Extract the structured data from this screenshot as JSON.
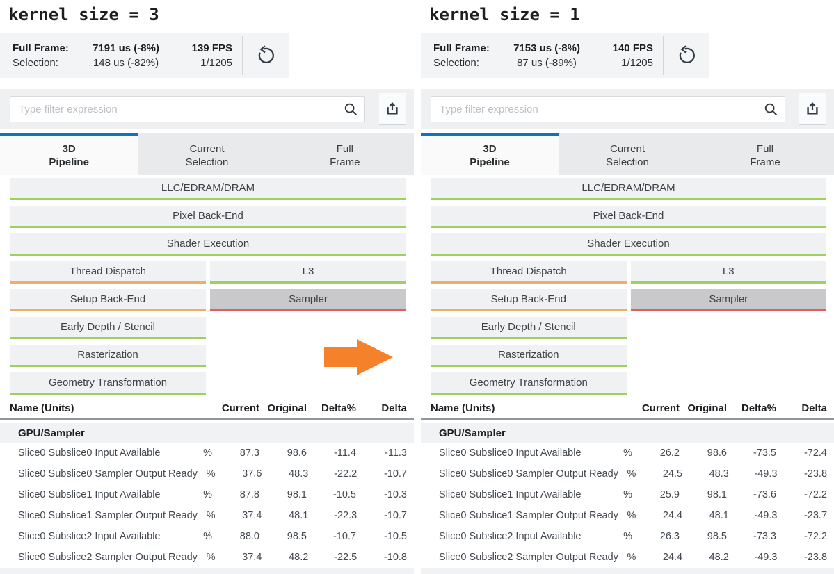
{
  "colors": {
    "accent_blue": "#1274b8",
    "green_underline": "#9fd05e",
    "orange_underline": "#f0ac68",
    "red_underline": "#e25d5d",
    "arrow_orange": "#f5822a",
    "selected_block_bg": "#c9c9cc"
  },
  "icons": {
    "search": "magnifier",
    "export": "tray-with-up-arrow",
    "reset": "counterclockwise-circular-arrow",
    "annotation": "orange-right-arrow"
  },
  "stats_labels": {
    "full_frame": "Full Frame:",
    "selection": "Selection:"
  },
  "filter": {
    "placeholder": "Type filter expression",
    "value": ""
  },
  "tabs": [
    {
      "line1": "3D",
      "line2": "Pipeline",
      "active": true
    },
    {
      "line1": "Current",
      "line2": "Selection",
      "active": false
    },
    {
      "line1": "Full",
      "line2": "Frame",
      "active": false
    }
  ],
  "pipeline": {
    "rows": [
      {
        "cells": [
          {
            "label": "LLC/EDRAM/DRAM",
            "underline": "#9fd05e",
            "width": "full"
          }
        ]
      },
      {
        "cells": [
          {
            "label": "Pixel Back-End",
            "underline": "#9fd05e",
            "width": "full"
          }
        ]
      },
      {
        "cells": [
          {
            "label": "Shader Execution",
            "underline": "#9fd05e",
            "width": "full"
          }
        ]
      },
      {
        "cells": [
          {
            "label": "Thread Dispatch",
            "underline": "#f0ac68",
            "width": "half"
          },
          {
            "label": "L3",
            "underline": "#9fd05e",
            "width": "half"
          }
        ]
      },
      {
        "cells": [
          {
            "label": "Setup Back-End",
            "underline": "#f0ac68",
            "width": "half"
          },
          {
            "label": "Sampler",
            "underline": "#e25d5d",
            "width": "half",
            "selected": true
          }
        ]
      },
      {
        "cells": [
          {
            "label": "Early Depth / Stencil",
            "underline": "#9fd05e",
            "width": "half"
          }
        ]
      },
      {
        "cells": [
          {
            "label": "Rasterization",
            "underline": "#9fd05e",
            "width": "half"
          }
        ]
      },
      {
        "cells": [
          {
            "label": "Geometry Transformation",
            "underline": "#9fd05e",
            "width": "half"
          }
        ]
      }
    ]
  },
  "table": {
    "columns": {
      "name": "Name (Units)",
      "current": "Current",
      "original": "Original",
      "delta_pct": "Delta%",
      "delta": "Delta"
    },
    "group": "GPU/Sampler"
  },
  "panels": [
    {
      "title": "kernel size = 3",
      "show_arrow": true,
      "stats": {
        "full_frame": "7191 us (-8%)",
        "fps": "139 FPS",
        "selection": "148 us (-82%)",
        "frame": "1/1205"
      },
      "table": {
        "rows": [
          {
            "name": "Slice0 Subslice0 Input Available",
            "units": "%",
            "current": "87.3",
            "original": "98.6",
            "delta_pct": "-11.4",
            "delta": "-11.3"
          },
          {
            "name": "Slice0 Subslice0 Sampler Output Ready",
            "units": "%",
            "current": "37.6",
            "original": "48.3",
            "delta_pct": "-22.2",
            "delta": "-10.7"
          },
          {
            "name": "Slice0 Subslice1 Input Available",
            "units": "%",
            "current": "87.8",
            "original": "98.1",
            "delta_pct": "-10.5",
            "delta": "-10.3"
          },
          {
            "name": "Slice0 Subslice1 Sampler Output Ready",
            "units": "%",
            "current": "37.4",
            "original": "48.1",
            "delta_pct": "-22.3",
            "delta": "-10.7"
          },
          {
            "name": "Slice0 Subslice2 Input Available",
            "units": "%",
            "current": "88.0",
            "original": "98.5",
            "delta_pct": "-10.7",
            "delta": "-10.5"
          },
          {
            "name": "Slice0 Subslice2 Sampler Output Ready",
            "units": "%",
            "current": "37.4",
            "original": "48.2",
            "delta_pct": "-22.5",
            "delta": "-10.8"
          }
        ]
      }
    },
    {
      "title": "kernel size = 1",
      "show_arrow": false,
      "stats": {
        "full_frame": "7153 us (-8%)",
        "fps": "140 FPS",
        "selection": "87 us (-89%)",
        "frame": "1/1205"
      },
      "table": {
        "rows": [
          {
            "name": "Slice0 Subslice0 Input Available",
            "units": "%",
            "current": "26.2",
            "original": "98.6",
            "delta_pct": "-73.5",
            "delta": "-72.4"
          },
          {
            "name": "Slice0 Subslice0 Sampler Output Ready",
            "units": "%",
            "current": "24.5",
            "original": "48.3",
            "delta_pct": "-49.3",
            "delta": "-23.8"
          },
          {
            "name": "Slice0 Subslice1 Input Available",
            "units": "%",
            "current": "25.9",
            "original": "98.1",
            "delta_pct": "-73.6",
            "delta": "-72.2"
          },
          {
            "name": "Slice0 Subslice1 Sampler Output Ready",
            "units": "%",
            "current": "24.4",
            "original": "48.1",
            "delta_pct": "-49.3",
            "delta": "-23.7"
          },
          {
            "name": "Slice0 Subslice2 Input Available",
            "units": "%",
            "current": "26.3",
            "original": "98.5",
            "delta_pct": "-73.3",
            "delta": "-72.2"
          },
          {
            "name": "Slice0 Subslice2 Sampler Output Ready",
            "units": "%",
            "current": "24.4",
            "original": "48.2",
            "delta_pct": "-49.3",
            "delta": "-23.8"
          }
        ]
      }
    }
  ]
}
